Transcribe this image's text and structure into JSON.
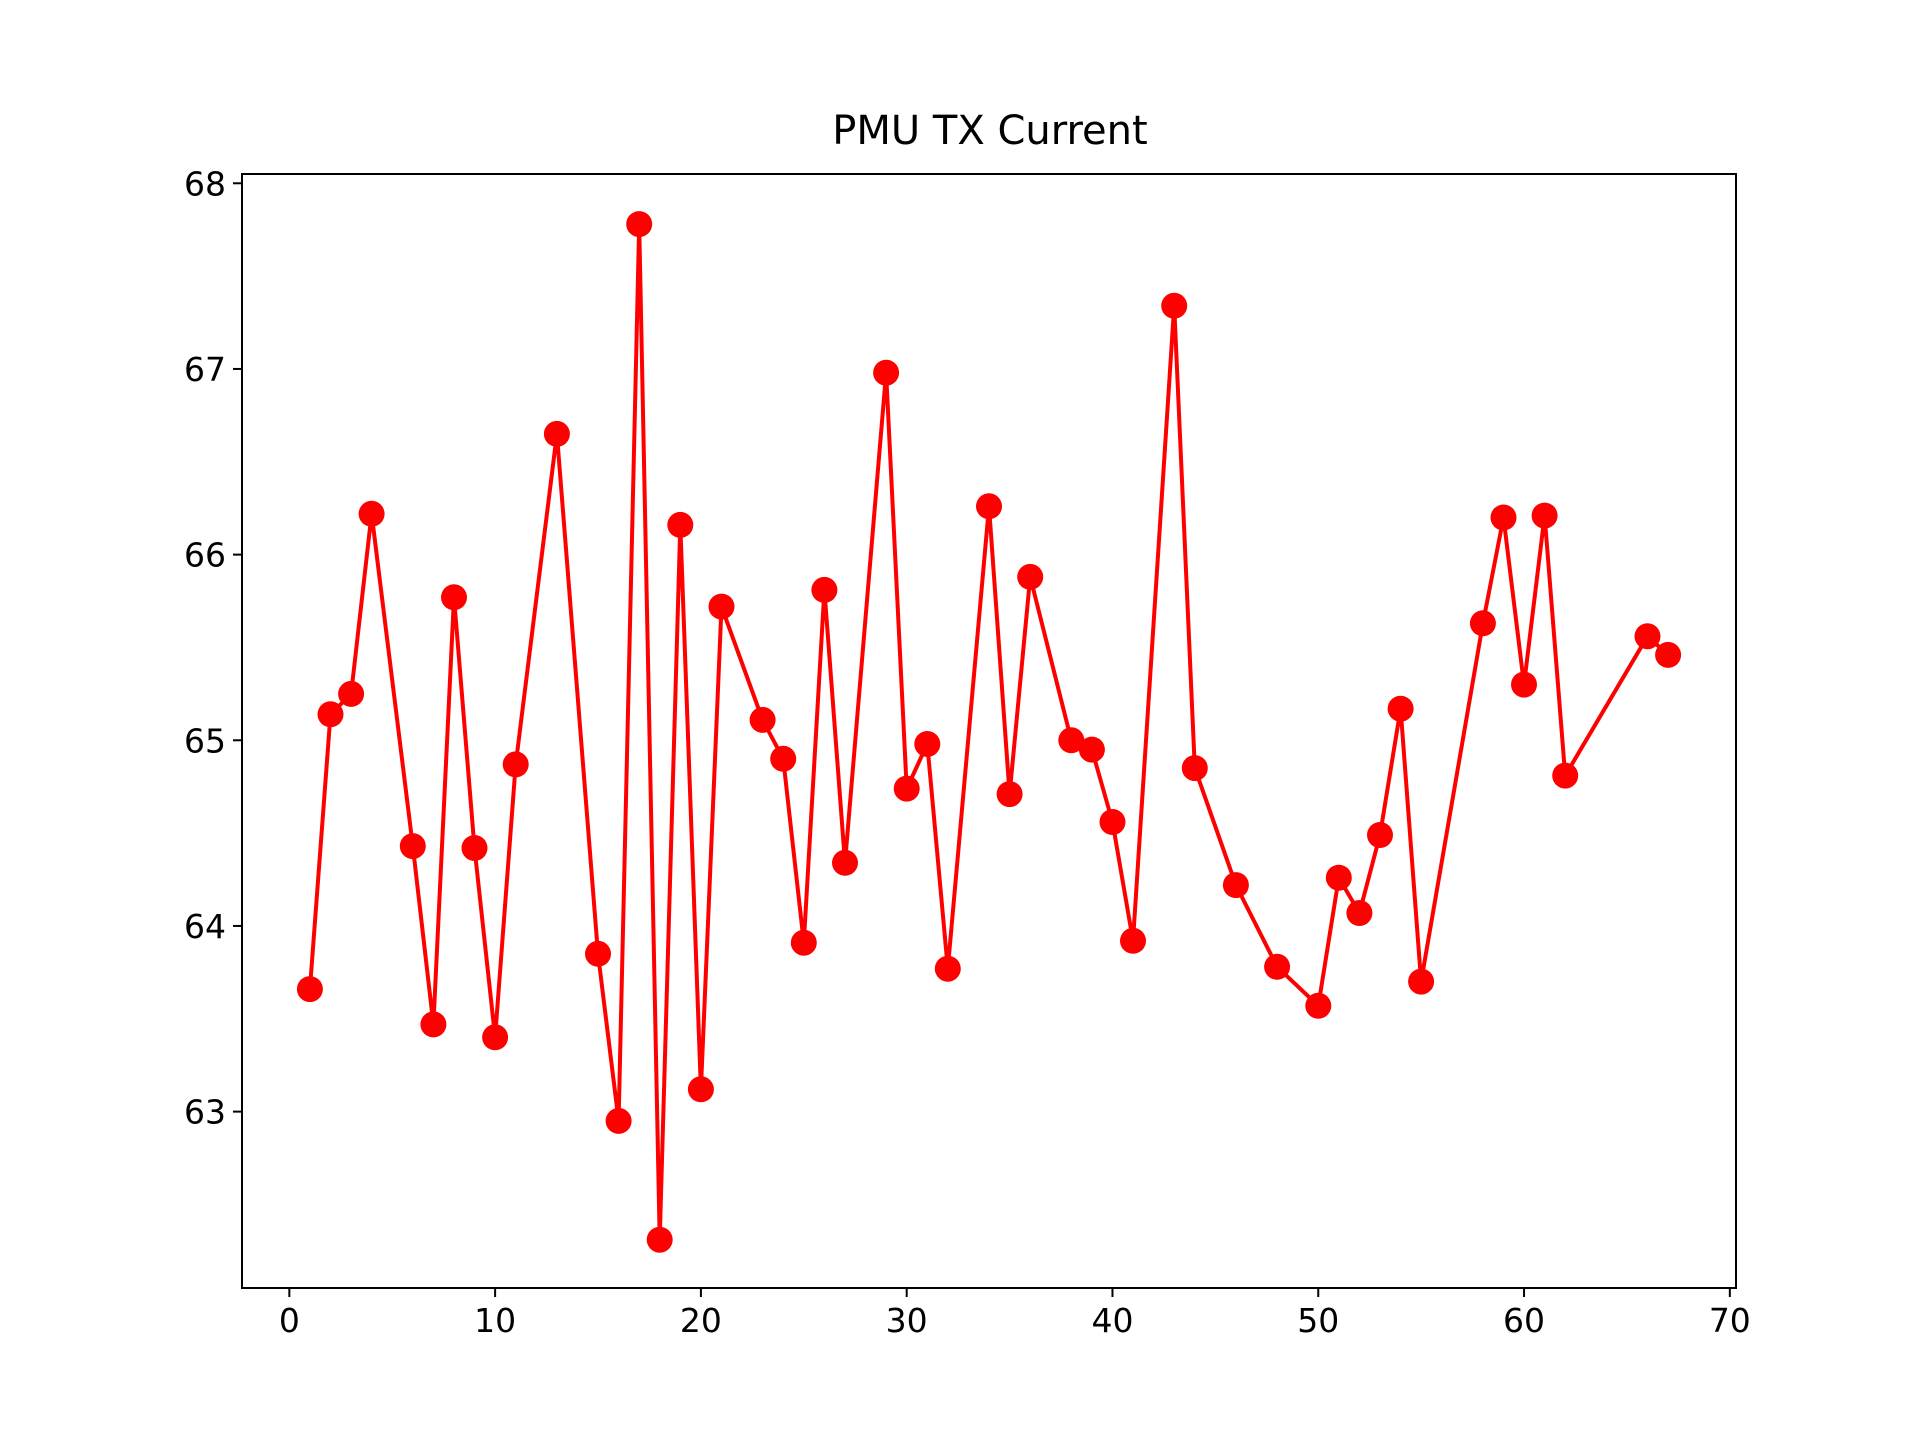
{
  "chart_data": {
    "type": "line",
    "title": "PMU TX Current",
    "xlabel": "",
    "ylabel": "",
    "xlim": [
      -2.3,
      70.3
    ],
    "ylim": [
      62.05,
      68.05
    ],
    "xticks": [
      0,
      10,
      20,
      30,
      40,
      50,
      60,
      70
    ],
    "yticks": [
      63,
      64,
      65,
      66,
      67,
      68
    ],
    "grid": false,
    "legend": "none",
    "line_color": "#ff0000",
    "marker": "circle",
    "series": [
      {
        "x": [
          1,
          2,
          3,
          4,
          6,
          7,
          8,
          9,
          10,
          11,
          13,
          15,
          16,
          17,
          18,
          19,
          20,
          21,
          23,
          24,
          25,
          26,
          27,
          29,
          30,
          31,
          32,
          34,
          35,
          36,
          38,
          39,
          40,
          41,
          43,
          44,
          46,
          48,
          50,
          51,
          52,
          53,
          54,
          55,
          58,
          59,
          60,
          61,
          62,
          66,
          67
        ],
        "y": [
          63.66,
          65.14,
          65.25,
          66.22,
          64.43,
          63.47,
          65.77,
          64.42,
          63.4,
          64.87,
          66.65,
          63.85,
          62.95,
          67.78,
          62.31,
          66.16,
          63.12,
          65.72,
          65.11,
          64.9,
          63.91,
          65.81,
          64.34,
          66.98,
          64.74,
          64.98,
          63.77,
          66.26,
          64.71,
          65.88,
          65.0,
          64.95,
          64.56,
          63.92,
          67.34,
          64.85,
          64.22,
          63.78,
          63.57,
          64.26,
          64.07,
          64.49,
          65.17,
          63.7,
          65.63,
          66.2,
          65.3,
          66.21,
          64.81,
          65.56,
          65.46
        ]
      }
    ]
  }
}
